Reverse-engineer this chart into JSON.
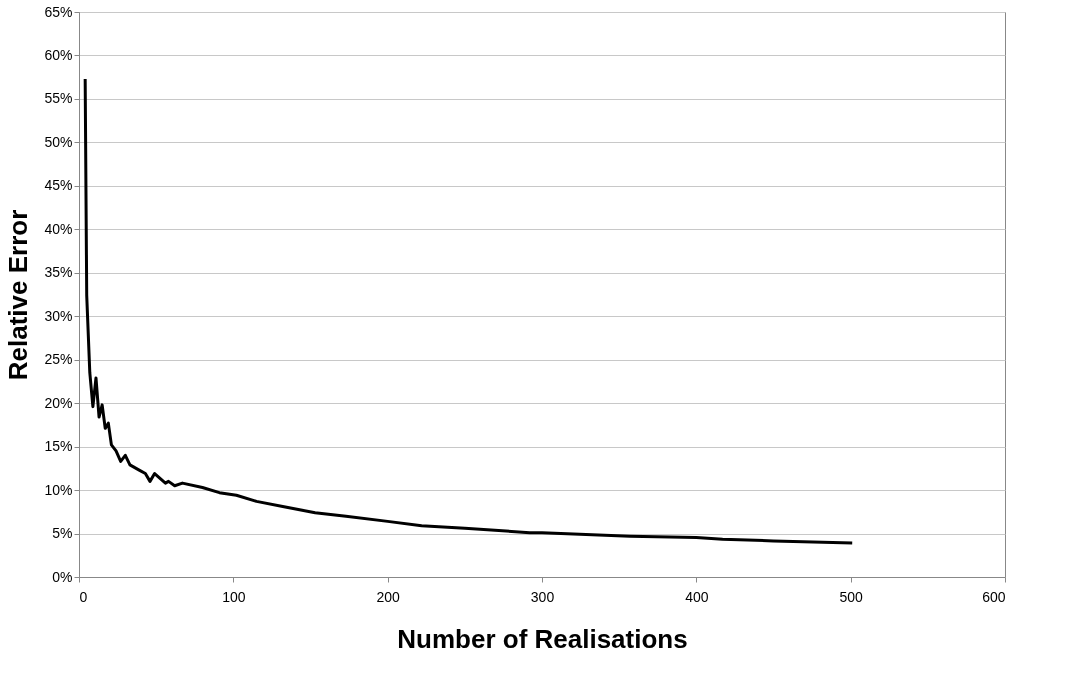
{
  "chart_data": {
    "type": "line",
    "xlabel": "Number of Realisations",
    "ylabel": "Relative Error",
    "xlim": [
      0,
      600
    ],
    "xticks": [
      0,
      100,
      200,
      300,
      400,
      500,
      600
    ],
    "ylim": [
      0,
      65
    ],
    "yticks": [
      {
        "value": 0,
        "label": "0%"
      },
      {
        "value": 5,
        "label": "5%"
      },
      {
        "value": 10,
        "label": "10%"
      },
      {
        "value": 15,
        "label": "15%"
      },
      {
        "value": 20,
        "label": "20%"
      },
      {
        "value": 25,
        "label": "25%"
      },
      {
        "value": 30,
        "label": "30%"
      },
      {
        "value": 35,
        "label": "35%"
      },
      {
        "value": 40,
        "label": "40%"
      },
      {
        "value": 45,
        "label": "45%"
      },
      {
        "value": 50,
        "label": "50%"
      },
      {
        "value": 55,
        "label": "55%"
      },
      {
        "value": 60,
        "label": "60%"
      },
      {
        "value": 65,
        "label": "65%"
      }
    ],
    "grid": "y",
    "marker": "none",
    "line_style": "solid",
    "legend": false,
    "series": [
      {
        "color": "#000000",
        "x": [
          4,
          5,
          7,
          9,
          11,
          13,
          15,
          17,
          19,
          21,
          24,
          27,
          30,
          33,
          39,
          43,
          46,
          49,
          56,
          58,
          62,
          67,
          80,
          91,
          102,
          115,
          132,
          153,
          173,
          200,
          222,
          250,
          292,
          300,
          357,
          400,
          417,
          450,
          501
        ],
        "values": [
          57.3,
          32.4,
          23.5,
          19.6,
          22.9,
          18.4,
          19.8,
          17.1,
          17.7,
          15.2,
          14.5,
          13.3,
          14.0,
          12.9,
          12.3,
          11.9,
          11.0,
          11.9,
          10.8,
          11.0,
          10.5,
          10.8,
          10.3,
          9.7,
          9.4,
          8.7,
          8.1,
          7.4,
          7.0,
          6.4,
          5.9,
          5.6,
          5.1,
          5.1,
          4.7,
          4.55,
          4.35,
          4.15,
          3.9
        ]
      }
    ]
  }
}
